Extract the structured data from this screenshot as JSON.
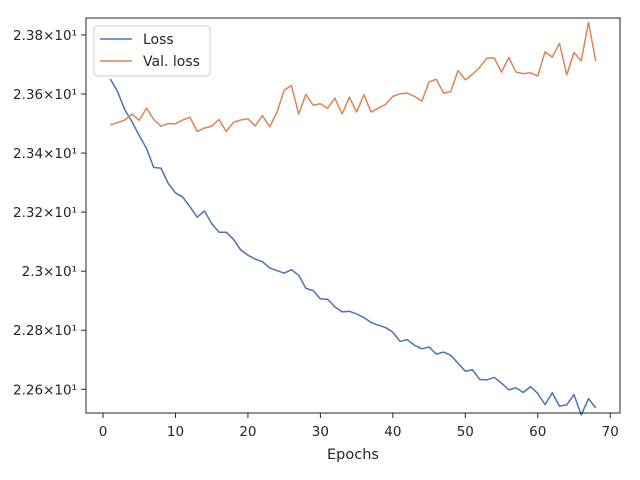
{
  "chart_data": {
    "type": "line",
    "xlabel": "Epochs",
    "ylabel": "",
    "xlim": [
      -2.35,
      71.35
    ],
    "ylim": [
      22.5196,
      23.8575
    ],
    "x_ticks": [
      0,
      10,
      20,
      30,
      40,
      50,
      60,
      70
    ],
    "x_tick_labels": [
      "0",
      "10",
      "20",
      "30",
      "40",
      "50",
      "60",
      "70"
    ],
    "y_ticks": [
      22.6,
      22.8,
      23.0,
      23.2,
      23.4,
      23.6,
      23.8
    ],
    "y_tick_labels": [
      "2.26×10¹",
      "2.28×10¹",
      "2.3×10¹",
      "2.32×10¹",
      "2.34×10¹",
      "2.36×10¹",
      "2.38×10¹"
    ],
    "legend_position": "top-left",
    "grid": false,
    "x": [
      1,
      2,
      3,
      4,
      5,
      6,
      7,
      8,
      9,
      10,
      11,
      12,
      13,
      14,
      15,
      16,
      17,
      18,
      19,
      20,
      21,
      22,
      23,
      24,
      25,
      26,
      27,
      28,
      29,
      30,
      31,
      32,
      33,
      34,
      35,
      36,
      37,
      38,
      39,
      40,
      41,
      42,
      43,
      44,
      45,
      46,
      47,
      48,
      49,
      50,
      51,
      52,
      53,
      54,
      55,
      56,
      57,
      58,
      59,
      60,
      61,
      62,
      63,
      64,
      65,
      66,
      67,
      68
    ],
    "series": [
      {
        "name": "Loss",
        "color": "#4c72b0",
        "values": [
          23.651,
          23.609,
          23.547,
          23.506,
          23.459,
          23.416,
          23.351,
          23.349,
          23.297,
          23.265,
          23.251,
          23.218,
          23.183,
          23.204,
          23.161,
          23.132,
          23.132,
          23.108,
          23.072,
          23.054,
          23.041,
          23.032,
          23.011,
          23.002,
          22.993,
          23.005,
          22.986,
          22.942,
          22.934,
          22.906,
          22.905,
          22.879,
          22.862,
          22.864,
          22.855,
          22.843,
          22.826,
          22.817,
          22.809,
          22.793,
          22.762,
          22.768,
          22.749,
          22.737,
          22.743,
          22.719,
          22.726,
          22.715,
          22.688,
          22.661,
          22.666,
          22.633,
          22.632,
          22.64,
          22.621,
          22.598,
          22.605,
          22.589,
          22.609,
          22.586,
          22.548,
          22.588,
          22.543,
          22.547,
          22.582,
          22.513,
          22.568,
          22.537
        ]
      },
      {
        "name": "Val. loss",
        "color": "#dd8452",
        "values": [
          23.496,
          23.503,
          23.512,
          23.532,
          23.511,
          23.552,
          23.514,
          23.491,
          23.5,
          23.499,
          23.512,
          23.521,
          23.473,
          23.485,
          23.491,
          23.514,
          23.473,
          23.504,
          23.512,
          23.516,
          23.492,
          23.527,
          23.489,
          23.537,
          23.613,
          23.629,
          23.532,
          23.599,
          23.562,
          23.567,
          23.552,
          23.586,
          23.532,
          23.59,
          23.539,
          23.598,
          23.539,
          23.552,
          23.565,
          23.592,
          23.601,
          23.603,
          23.592,
          23.576,
          23.641,
          23.65,
          23.603,
          23.608,
          23.68,
          23.648,
          23.667,
          23.691,
          23.722,
          23.722,
          23.674,
          23.724,
          23.674,
          23.669,
          23.672,
          23.661,
          23.743,
          23.725,
          23.772,
          23.665,
          23.741,
          23.712,
          23.843,
          23.712
        ]
      }
    ]
  }
}
